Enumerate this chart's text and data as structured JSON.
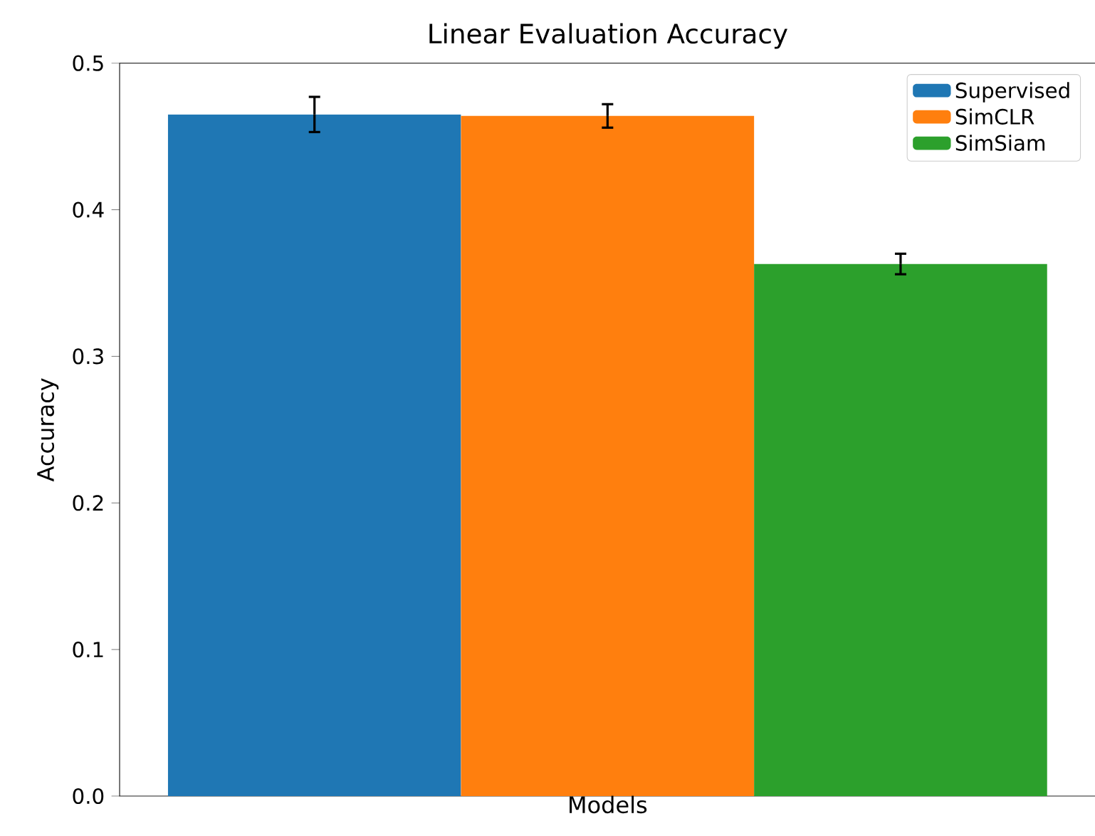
{
  "chart_data": {
    "type": "bar",
    "title": "Linear Evaluation Accuracy",
    "xlabel": "Models",
    "ylabel": "Accuracy",
    "categories": [
      null
    ],
    "series": [
      {
        "name": "Supervised",
        "color": "#1f77b4",
        "values": [
          0.465
        ],
        "errors": [
          0.012
        ]
      },
      {
        "name": "SimCLR",
        "color": "#ff7f0e",
        "values": [
          0.464
        ],
        "errors": [
          0.008
        ]
      },
      {
        "name": "SimSiam",
        "color": "#2ca02c",
        "values": [
          0.363
        ],
        "errors": [
          0.007
        ]
      }
    ],
    "ylim": [
      0,
      0.5
    ],
    "yticks": [
      {
        "value": 0,
        "label": "0.0"
      },
      {
        "value": 0.1,
        "label": "0.1"
      },
      {
        "value": 0.2,
        "label": "0.2"
      },
      {
        "value": 0.3,
        "label": "0.3"
      },
      {
        "value": 0.4,
        "label": "0.4"
      },
      {
        "value": 0.5,
        "label": "0.5"
      }
    ],
    "tick_labels": "y",
    "legend": "top right",
    "grid": false
  }
}
